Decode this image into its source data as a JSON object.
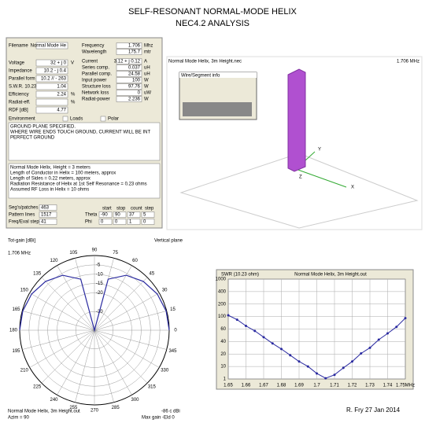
{
  "header": {
    "title": "SELF-RESONANT NORMAL-MODE HELIX",
    "subtitle": "NEC4.2 ANALYSIS"
  },
  "form": {
    "left": [
      [
        "Filename",
        "Normal Mode He",
        ""
      ],
      [
        "Voltage",
        "32 + j 0",
        "V"
      ],
      [
        "Impedance",
        "10.2 - j 0.4",
        ""
      ],
      [
        "Parallel form",
        "10.2 // - 263",
        ""
      ],
      [
        "S.W.R. 10.23",
        "1.04",
        ""
      ],
      [
        "Efficiency",
        "2.24",
        "%"
      ],
      [
        "Radiat-eff.",
        "",
        "%"
      ],
      [
        "RDF [dB]",
        "4.77",
        ""
      ]
    ],
    "right": [
      [
        "Frequency",
        "1.706",
        "Mhz"
      ],
      [
        "Wavelength",
        "175.7",
        "mtr"
      ],
      [
        "Current",
        "3.12 + j 0.12",
        "A"
      ],
      [
        "Series comp.",
        "0.037",
        "uH"
      ],
      [
        "Parallel comp.",
        "24.58",
        "uH"
      ],
      [
        "Input power",
        "100",
        "W"
      ],
      [
        "Structure loss",
        "97.76",
        "W"
      ],
      [
        "Network loss",
        "0",
        "uW"
      ],
      [
        "Radiat-power",
        "2.236",
        "W"
      ]
    ],
    "environment": "Environment",
    "loads": "Loads",
    "polar": "Polar",
    "messages": [
      "GROUND PLANE SPECIFIED.",
      "WHERE WIRE ENDS TOUCH GROUND, CURRENT WILL BE INT",
      "PERFECT GROUND"
    ],
    "comments": [
      "Normal Mode Helix, Height = 3 meters",
      "Length of Conductor in Helix = 100 meters, approx",
      "Length of Sides = 0.22 meters, approx",
      "Radiation Resistance of Helix at 1st Self Resonance = 0.23 ohms",
      "Assumed RF Loss in Helix = 10 ohms"
    ],
    "counts": [
      [
        "Seg's/patches",
        "463"
      ],
      [
        "Pattern lines",
        "1517"
      ],
      [
        "Freq/Eval steps",
        "41"
      ]
    ],
    "sweep_header": [
      "start",
      "stop",
      "count",
      "step"
    ],
    "sweep": [
      [
        "Theta",
        "-90",
        "90",
        "37",
        "5"
      ],
      [
        "Phi",
        "0",
        "0",
        "1",
        "0"
      ]
    ]
  },
  "view3d": {
    "file": "Normal Mode Helix, 3m Height.nec",
    "freq": "1.706 MHz",
    "dialog": "Wire/Segment info",
    "axes": [
      "X",
      "Y",
      "Z"
    ]
  },
  "polar": {
    "title": "Tot-gain [dBi]",
    "plane": "Vertical plane",
    "freq": "1.706 MHz",
    "file": "Normal Mode Helix, 3m Height.out",
    "azim": "Azim = 90",
    "maxgain": "-86 c dBi",
    "eld": "Max gain -Eld 0",
    "angles": [
      0,
      15,
      30,
      45,
      60,
      75,
      90,
      105,
      120,
      135,
      150,
      165,
      180,
      195,
      210,
      225,
      240,
      255,
      270,
      285,
      300,
      315,
      330,
      345
    ],
    "rlim": [
      -40,
      0
    ],
    "rticks": [
      -5,
      -10,
      -15,
      -20,
      -30
    ],
    "theta": [
      0,
      15,
      30,
      45,
      60,
      75,
      90,
      105,
      120,
      135,
      150,
      165,
      180
    ],
    "gain": [
      0,
      -0.3,
      -1.2,
      -3,
      -6,
      -11.7,
      -40,
      -11.7,
      -6,
      -3,
      -1.2,
      -0.3,
      0
    ],
    "color": "#2a2aa0"
  },
  "chart_data": {
    "type": "line",
    "title": "Normal Mode Helix, 3m Height.out",
    "y_label": "SWR (10.23 ohm)",
    "scale": "piecewise",
    "x": [
      1.65,
      1.655,
      1.66,
      1.665,
      1.67,
      1.675,
      1.68,
      1.685,
      1.69,
      1.695,
      1.7,
      1.705,
      1.71,
      1.715,
      1.72,
      1.725,
      1.73,
      1.735,
      1.74,
      1.745,
      1.75
    ],
    "series": [
      {
        "name": "SWR",
        "color": "#2a2aa0",
        "values": [
          110,
          90,
          70,
          57,
          47,
          37,
          28,
          19,
          14,
          10,
          5,
          1.5,
          4,
          9,
          14,
          21,
          30,
          43,
          53,
          67,
          95
        ]
      }
    ],
    "xlim": [
      1.65,
      1.75
    ],
    "xticks": [
      1.65,
      1.66,
      1.67,
      1.68,
      1.69,
      1.7,
      1.71,
      1.72,
      1.73,
      1.74,
      {
        "value": 1.75,
        "label": "1.75MHz"
      }
    ],
    "ylim": [
      1,
      1000
    ],
    "yticks": [
      1000,
      400,
      200,
      100,
      60,
      40,
      20,
      10,
      1
    ],
    "grid": true
  },
  "signature": "R. Fry 27 Jan 2014"
}
